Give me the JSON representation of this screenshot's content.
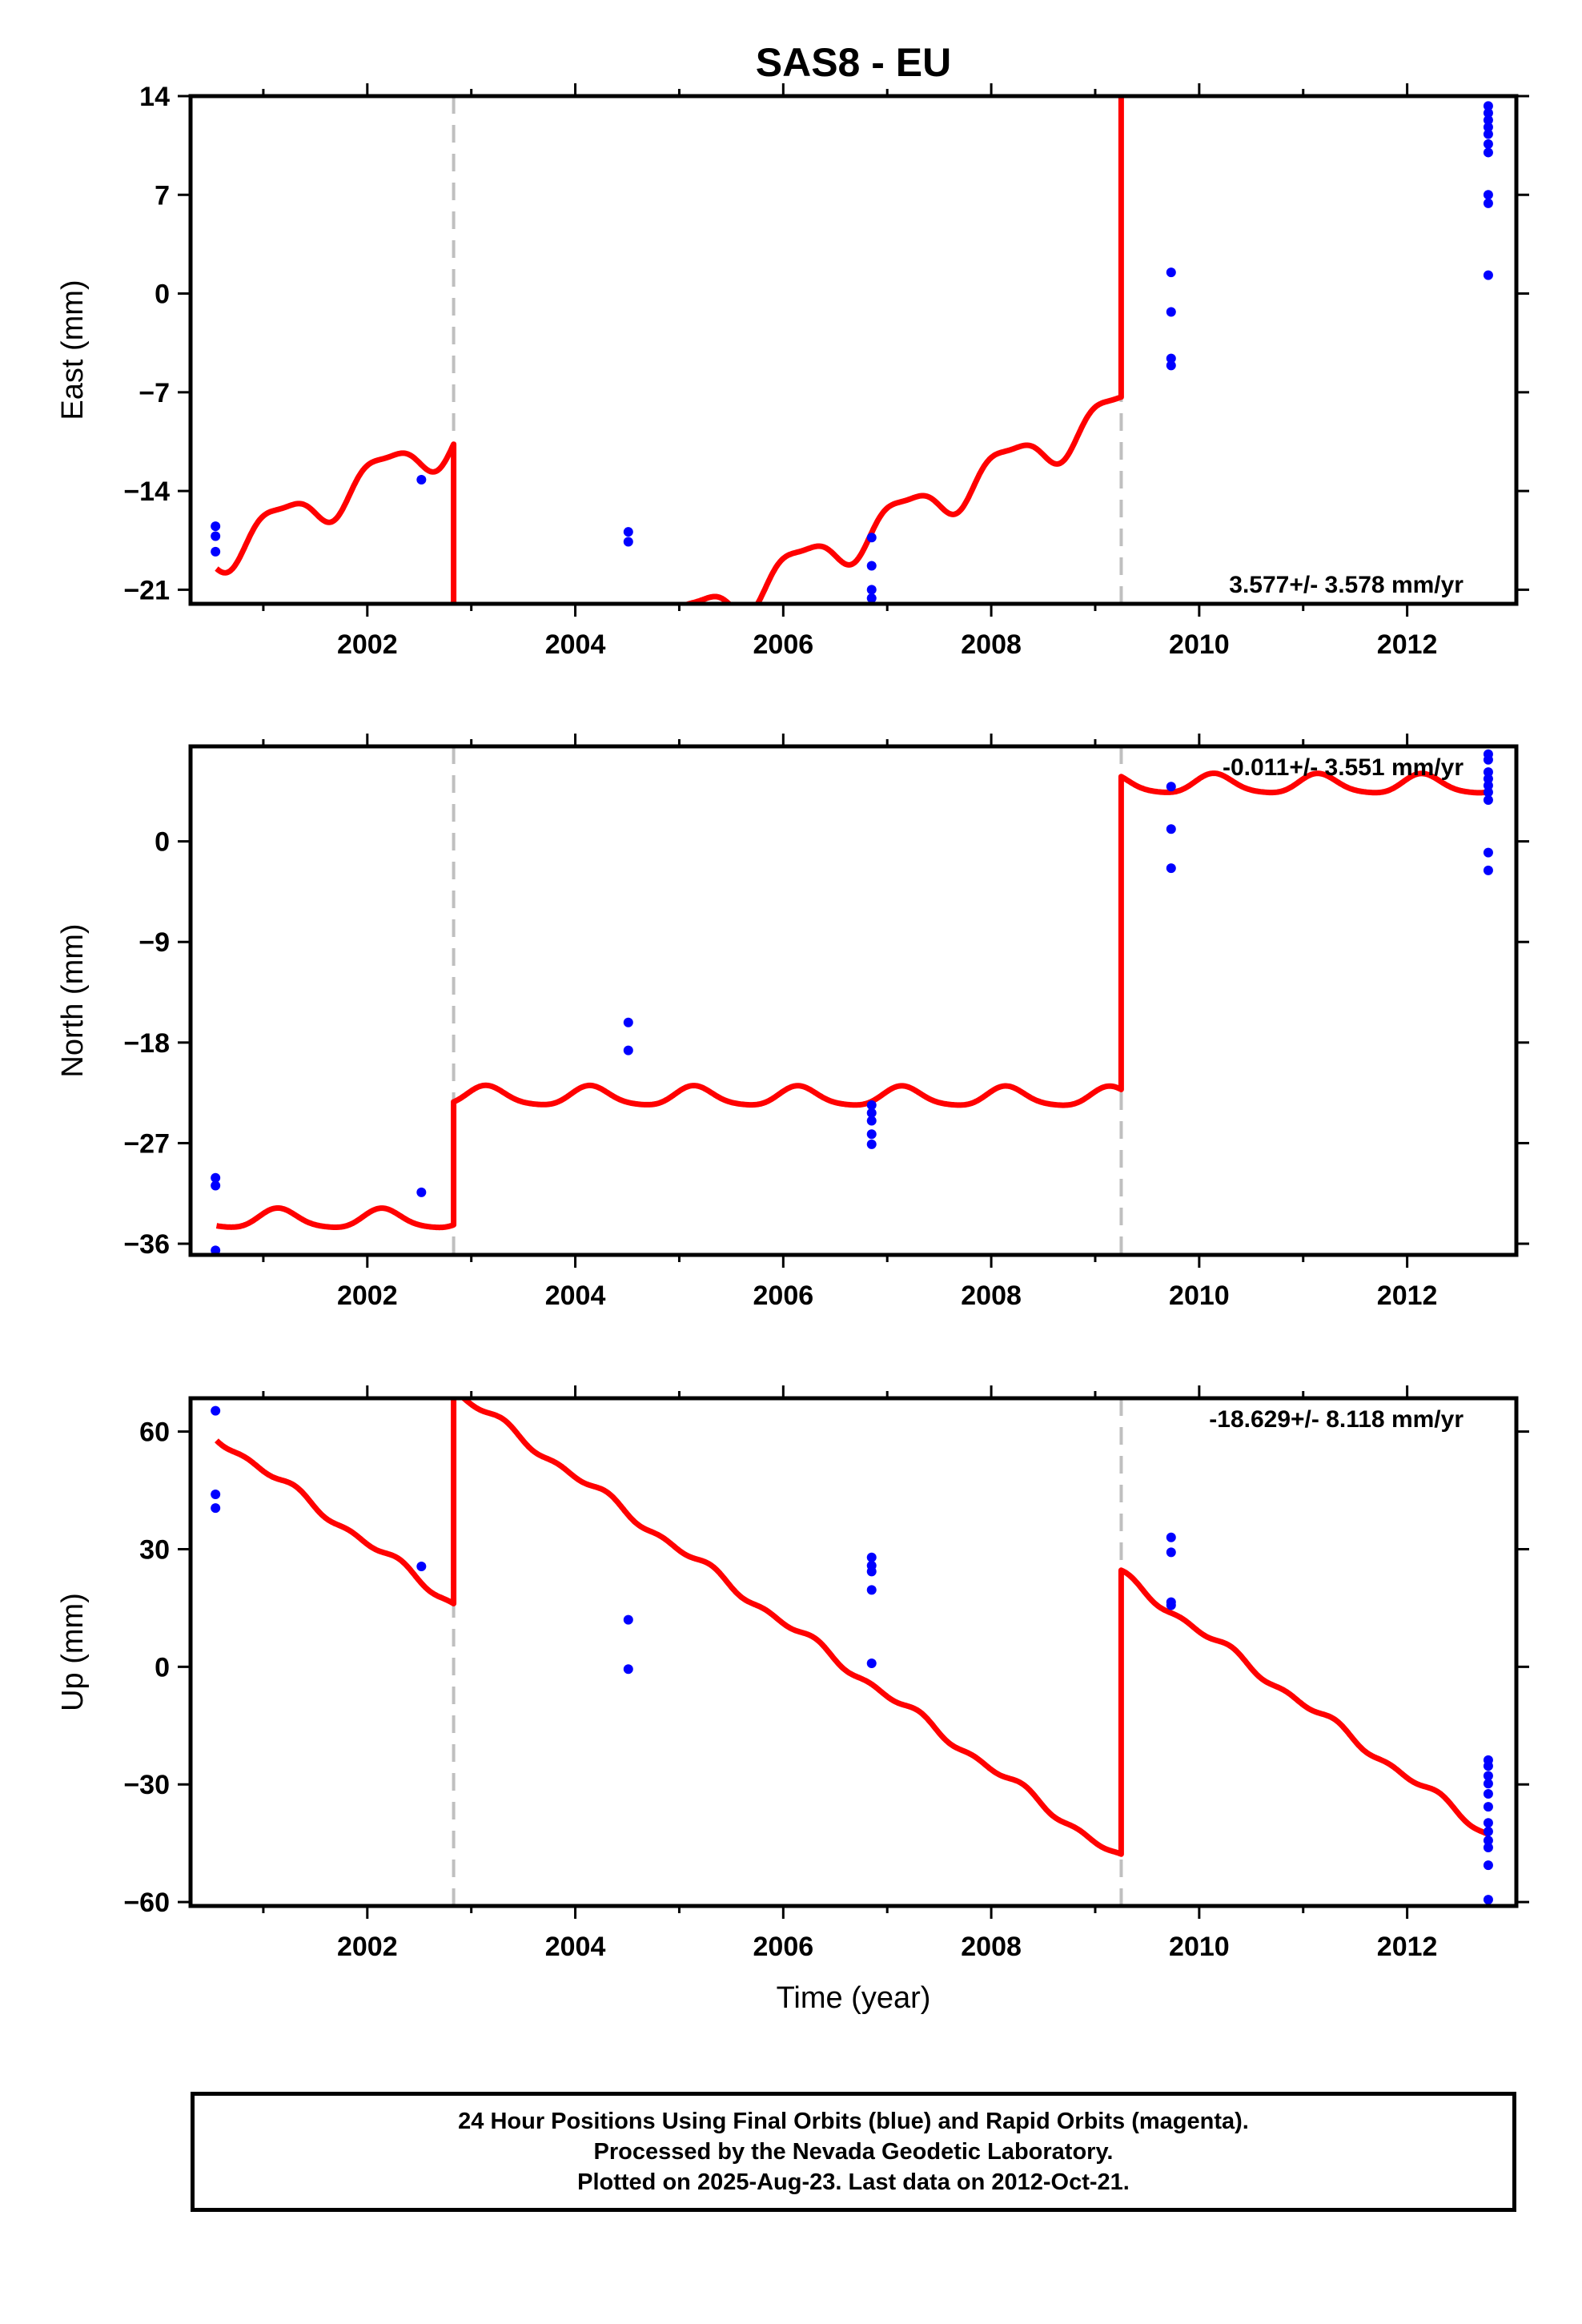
{
  "page_title": "SAS8 - EU",
  "colors": {
    "model": "#ff0000",
    "final_orbits": "#0000ff",
    "rapid_orbits": "#ff00ff",
    "break_line": "#bfbfbf"
  },
  "chart_data": [
    {
      "type": "scatter",
      "id": "east",
      "ylabel": "East (mm)",
      "rate_label": "3.577+/- 3.578 mm/yr",
      "xlim": [
        2000.3,
        2013.05
      ],
      "ylim": [
        -22.0,
        14.0
      ],
      "x_ticks": [
        2002,
        2004,
        2006,
        2008,
        2010,
        2012
      ],
      "y_ticks": [
        14,
        7,
        0,
        -7,
        -14,
        -21
      ],
      "y_tick_labels": [
        "14",
        "7",
        "0",
        "−7",
        "−14",
        "−21"
      ],
      "breaks": [
        2002.83,
        2009.25
      ],
      "points": [
        {
          "x": 2000.54,
          "y": -16.5
        },
        {
          "x": 2000.54,
          "y": -17.2
        },
        {
          "x": 2000.54,
          "y": -18.3
        },
        {
          "x": 2002.52,
          "y": -13.2
        },
        {
          "x": 2004.51,
          "y": -16.9
        },
        {
          "x": 2004.51,
          "y": -17.6
        },
        {
          "x": 2006.85,
          "y": -17.3
        },
        {
          "x": 2006.85,
          "y": -19.3
        },
        {
          "x": 2006.85,
          "y": -21.0
        },
        {
          "x": 2006.85,
          "y": -21.6
        },
        {
          "x": 2009.73,
          "y": 1.5
        },
        {
          "x": 2009.73,
          "y": -1.3
        },
        {
          "x": 2009.73,
          "y": -4.6
        },
        {
          "x": 2009.73,
          "y": -5.1
        },
        {
          "x": 2012.78,
          "y": 13.3
        },
        {
          "x": 2012.78,
          "y": 12.8
        },
        {
          "x": 2012.78,
          "y": 12.3
        },
        {
          "x": 2012.78,
          "y": 11.8
        },
        {
          "x": 2012.78,
          "y": 11.3
        },
        {
          "x": 2012.78,
          "y": 10.6
        },
        {
          "x": 2012.78,
          "y": 10.0
        },
        {
          "x": 2012.78,
          "y": 7.0
        },
        {
          "x": 2012.78,
          "y": 6.4
        },
        {
          "x": 2012.78,
          "y": 1.3
        }
      ],
      "model": {
        "segments": [
          {
            "x0": 2000.55,
            "x1": 2002.83,
            "intercept": -16.8,
            "slope": 3.577
          },
          {
            "x0": 2002.83,
            "x1": 2009.25,
            "intercept": -37.7,
            "slope": 3.577
          },
          {
            "x0": 2009.25,
            "x1": 2012.78,
            "intercept": 1.4,
            "slope": 3.577
          }
        ],
        "ref_year": 2001.0,
        "annual_amp": 1.35,
        "annual_phase": 0.1,
        "semiannual_amp": 0.4,
        "semiannual_phase": 0.2
      }
    },
    {
      "type": "scatter",
      "id": "north",
      "ylabel": "North (mm)",
      "rate_label": "-0.011+/- 3.551 mm/yr",
      "xlim": [
        2000.3,
        2013.05
      ],
      "ylim": [
        -37.0,
        8.5
      ],
      "x_ticks": [
        2002,
        2004,
        2006,
        2008,
        2010,
        2012
      ],
      "y_ticks": [
        0,
        -9,
        -18,
        -27,
        -36
      ],
      "y_tick_labels": [
        "0",
        "−9",
        "−18",
        "−27",
        "−36"
      ],
      "breaks": [
        2002.83,
        2009.25
      ],
      "points": [
        {
          "x": 2000.54,
          "y": -30.1
        },
        {
          "x": 2000.54,
          "y": -30.8
        },
        {
          "x": 2000.54,
          "y": -36.6
        },
        {
          "x": 2002.52,
          "y": -31.4
        },
        {
          "x": 2004.51,
          "y": -16.2
        },
        {
          "x": 2004.51,
          "y": -18.7
        },
        {
          "x": 2006.85,
          "y": -23.6
        },
        {
          "x": 2006.85,
          "y": -24.3
        },
        {
          "x": 2006.85,
          "y": -25.0
        },
        {
          "x": 2006.85,
          "y": -26.2
        },
        {
          "x": 2006.85,
          "y": -27.1
        },
        {
          "x": 2009.73,
          "y": 4.9
        },
        {
          "x": 2009.73,
          "y": 1.1
        },
        {
          "x": 2009.73,
          "y": -2.4
        },
        {
          "x": 2012.78,
          "y": 7.8
        },
        {
          "x": 2012.78,
          "y": 7.3
        },
        {
          "x": 2012.78,
          "y": 6.2
        },
        {
          "x": 2012.78,
          "y": 5.6
        },
        {
          "x": 2012.78,
          "y": 5.0
        },
        {
          "x": 2012.78,
          "y": 4.4
        },
        {
          "x": 2012.78,
          "y": 3.7
        },
        {
          "x": 2012.78,
          "y": -1.0
        },
        {
          "x": 2012.78,
          "y": -2.6
        }
      ],
      "model": {
        "segments": [
          {
            "x0": 2000.55,
            "x1": 2002.83,
            "intercept": -33.8,
            "slope": -0.011
          },
          {
            "x0": 2002.83,
            "x1": 2009.25,
            "intercept": -22.8,
            "slope": -0.011
          },
          {
            "x0": 2009.25,
            "x1": 2012.78,
            "intercept": 5.2,
            "slope": -0.011
          }
        ],
        "ref_year": 2001.0,
        "annual_amp": 0.85,
        "annual_phase": 0.1,
        "semiannual_amp": 0.15,
        "semiannual_phase": 0.0
      }
    },
    {
      "type": "scatter",
      "id": "up",
      "ylabel": "Up (mm)",
      "rate_label": "-18.629+/- 8.118 mm/yr",
      "xlim": [
        2000.3,
        2013.05
      ],
      "ylim": [
        -61.0,
        68.5
      ],
      "x_ticks": [
        2002,
        2004,
        2006,
        2008,
        2010,
        2012
      ],
      "y_ticks": [
        60,
        30,
        0,
        -30,
        -60
      ],
      "y_tick_labels": [
        "60",
        "30",
        "0",
        "−30",
        "−60"
      ],
      "breaks": [
        2002.83,
        2009.25
      ],
      "points": [
        {
          "x": 2000.54,
          "y": 65.3
        },
        {
          "x": 2000.54,
          "y": 44.0
        },
        {
          "x": 2000.54,
          "y": 40.5
        },
        {
          "x": 2002.52,
          "y": 25.6
        },
        {
          "x": 2004.51,
          "y": 12.0
        },
        {
          "x": 2004.51,
          "y": -0.6
        },
        {
          "x": 2006.85,
          "y": 27.9
        },
        {
          "x": 2006.85,
          "y": 25.8
        },
        {
          "x": 2006.85,
          "y": 24.3
        },
        {
          "x": 2006.85,
          "y": 19.6
        },
        {
          "x": 2006.85,
          "y": 0.9
        },
        {
          "x": 2009.73,
          "y": 33.0
        },
        {
          "x": 2009.73,
          "y": 29.2
        },
        {
          "x": 2009.73,
          "y": 16.5
        },
        {
          "x": 2009.73,
          "y": 15.7
        },
        {
          "x": 2012.78,
          "y": -23.8
        },
        {
          "x": 2012.78,
          "y": -25.3
        },
        {
          "x": 2012.78,
          "y": -27.8
        },
        {
          "x": 2012.78,
          "y": -29.8
        },
        {
          "x": 2012.78,
          "y": -32.4
        },
        {
          "x": 2012.78,
          "y": -35.7
        },
        {
          "x": 2012.78,
          "y": -39.8
        },
        {
          "x": 2012.78,
          "y": -42.0
        },
        {
          "x": 2012.78,
          "y": -44.3
        },
        {
          "x": 2012.78,
          "y": -46.1
        },
        {
          "x": 2012.78,
          "y": -50.6
        },
        {
          "x": 2012.78,
          "y": -59.4
        }
      ],
      "model": {
        "segments": [
          {
            "x0": 2000.55,
            "x1": 2002.83,
            "intercept": 50.3,
            "slope": -18.629
          },
          {
            "x0": 2002.83,
            "x1": 2009.25,
            "intercept": 104.6,
            "slope": -18.629
          },
          {
            "x0": 2009.25,
            "x1": 2012.78,
            "intercept": 177.0,
            "slope": -18.629
          }
        ],
        "ref_year": 2001.0,
        "annual_amp": 0.9,
        "annual_phase": 0.0,
        "semiannual_amp": 0.7,
        "semiannual_phase": 0.3
      }
    }
  ],
  "xlabel": "Time (year)",
  "caption": {
    "line1": "24 Hour Positions Using Final Orbits (blue) and Rapid Orbits (magenta).",
    "line2": "Processed by the Nevada Geodetic Laboratory.",
    "line3": "Plotted on 2025-Aug-23. Last data on 2012-Oct-21."
  }
}
